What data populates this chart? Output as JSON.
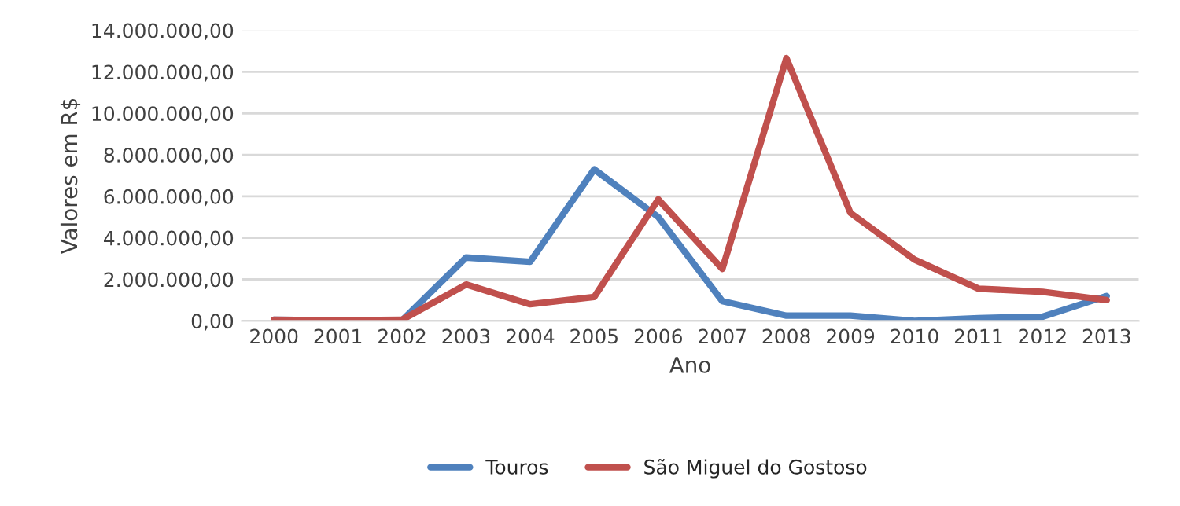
{
  "chart_data": {
    "type": "line",
    "xlabel": "Ano",
    "ylabel": "Valores em R$",
    "categories": [
      "2000",
      "2001",
      "2002",
      "2003",
      "2004",
      "2005",
      "2006",
      "2007",
      "2008",
      "2009",
      "2010",
      "2011",
      "2012",
      "2013"
    ],
    "series": [
      {
        "name": "Touros",
        "color": "#4f81bd",
        "values": [
          50000,
          20000,
          20000,
          3050000,
          2850000,
          7300000,
          5000000,
          950000,
          250000,
          250000,
          0,
          130000,
          200000,
          1200000
        ]
      },
      {
        "name": "São Miguel do Gostoso",
        "color": "#c0504d",
        "values": [
          50000,
          20000,
          50000,
          1750000,
          800000,
          1150000,
          5850000,
          2500000,
          12660000,
          5200000,
          2950000,
          1550000,
          1400000,
          1000000
        ]
      }
    ],
    "ylim": [
      0,
      14000000
    ],
    "yticks": [
      {
        "value": 0,
        "label": "0,00"
      },
      {
        "value": 2000000,
        "label": "2.000.000,00"
      },
      {
        "value": 4000000,
        "label": "4.000.000,00"
      },
      {
        "value": 6000000,
        "label": "6.000.000,00"
      },
      {
        "value": 8000000,
        "label": "8.000.000,00"
      },
      {
        "value": 10000000,
        "label": "10.000.000,00"
      },
      {
        "value": 12000000,
        "label": "12.000.000,00"
      },
      {
        "value": 14000000,
        "label": "14.000.000,00"
      }
    ],
    "grid": "y",
    "legend": "bottom",
    "marker": "none",
    "line_style": "solid"
  }
}
